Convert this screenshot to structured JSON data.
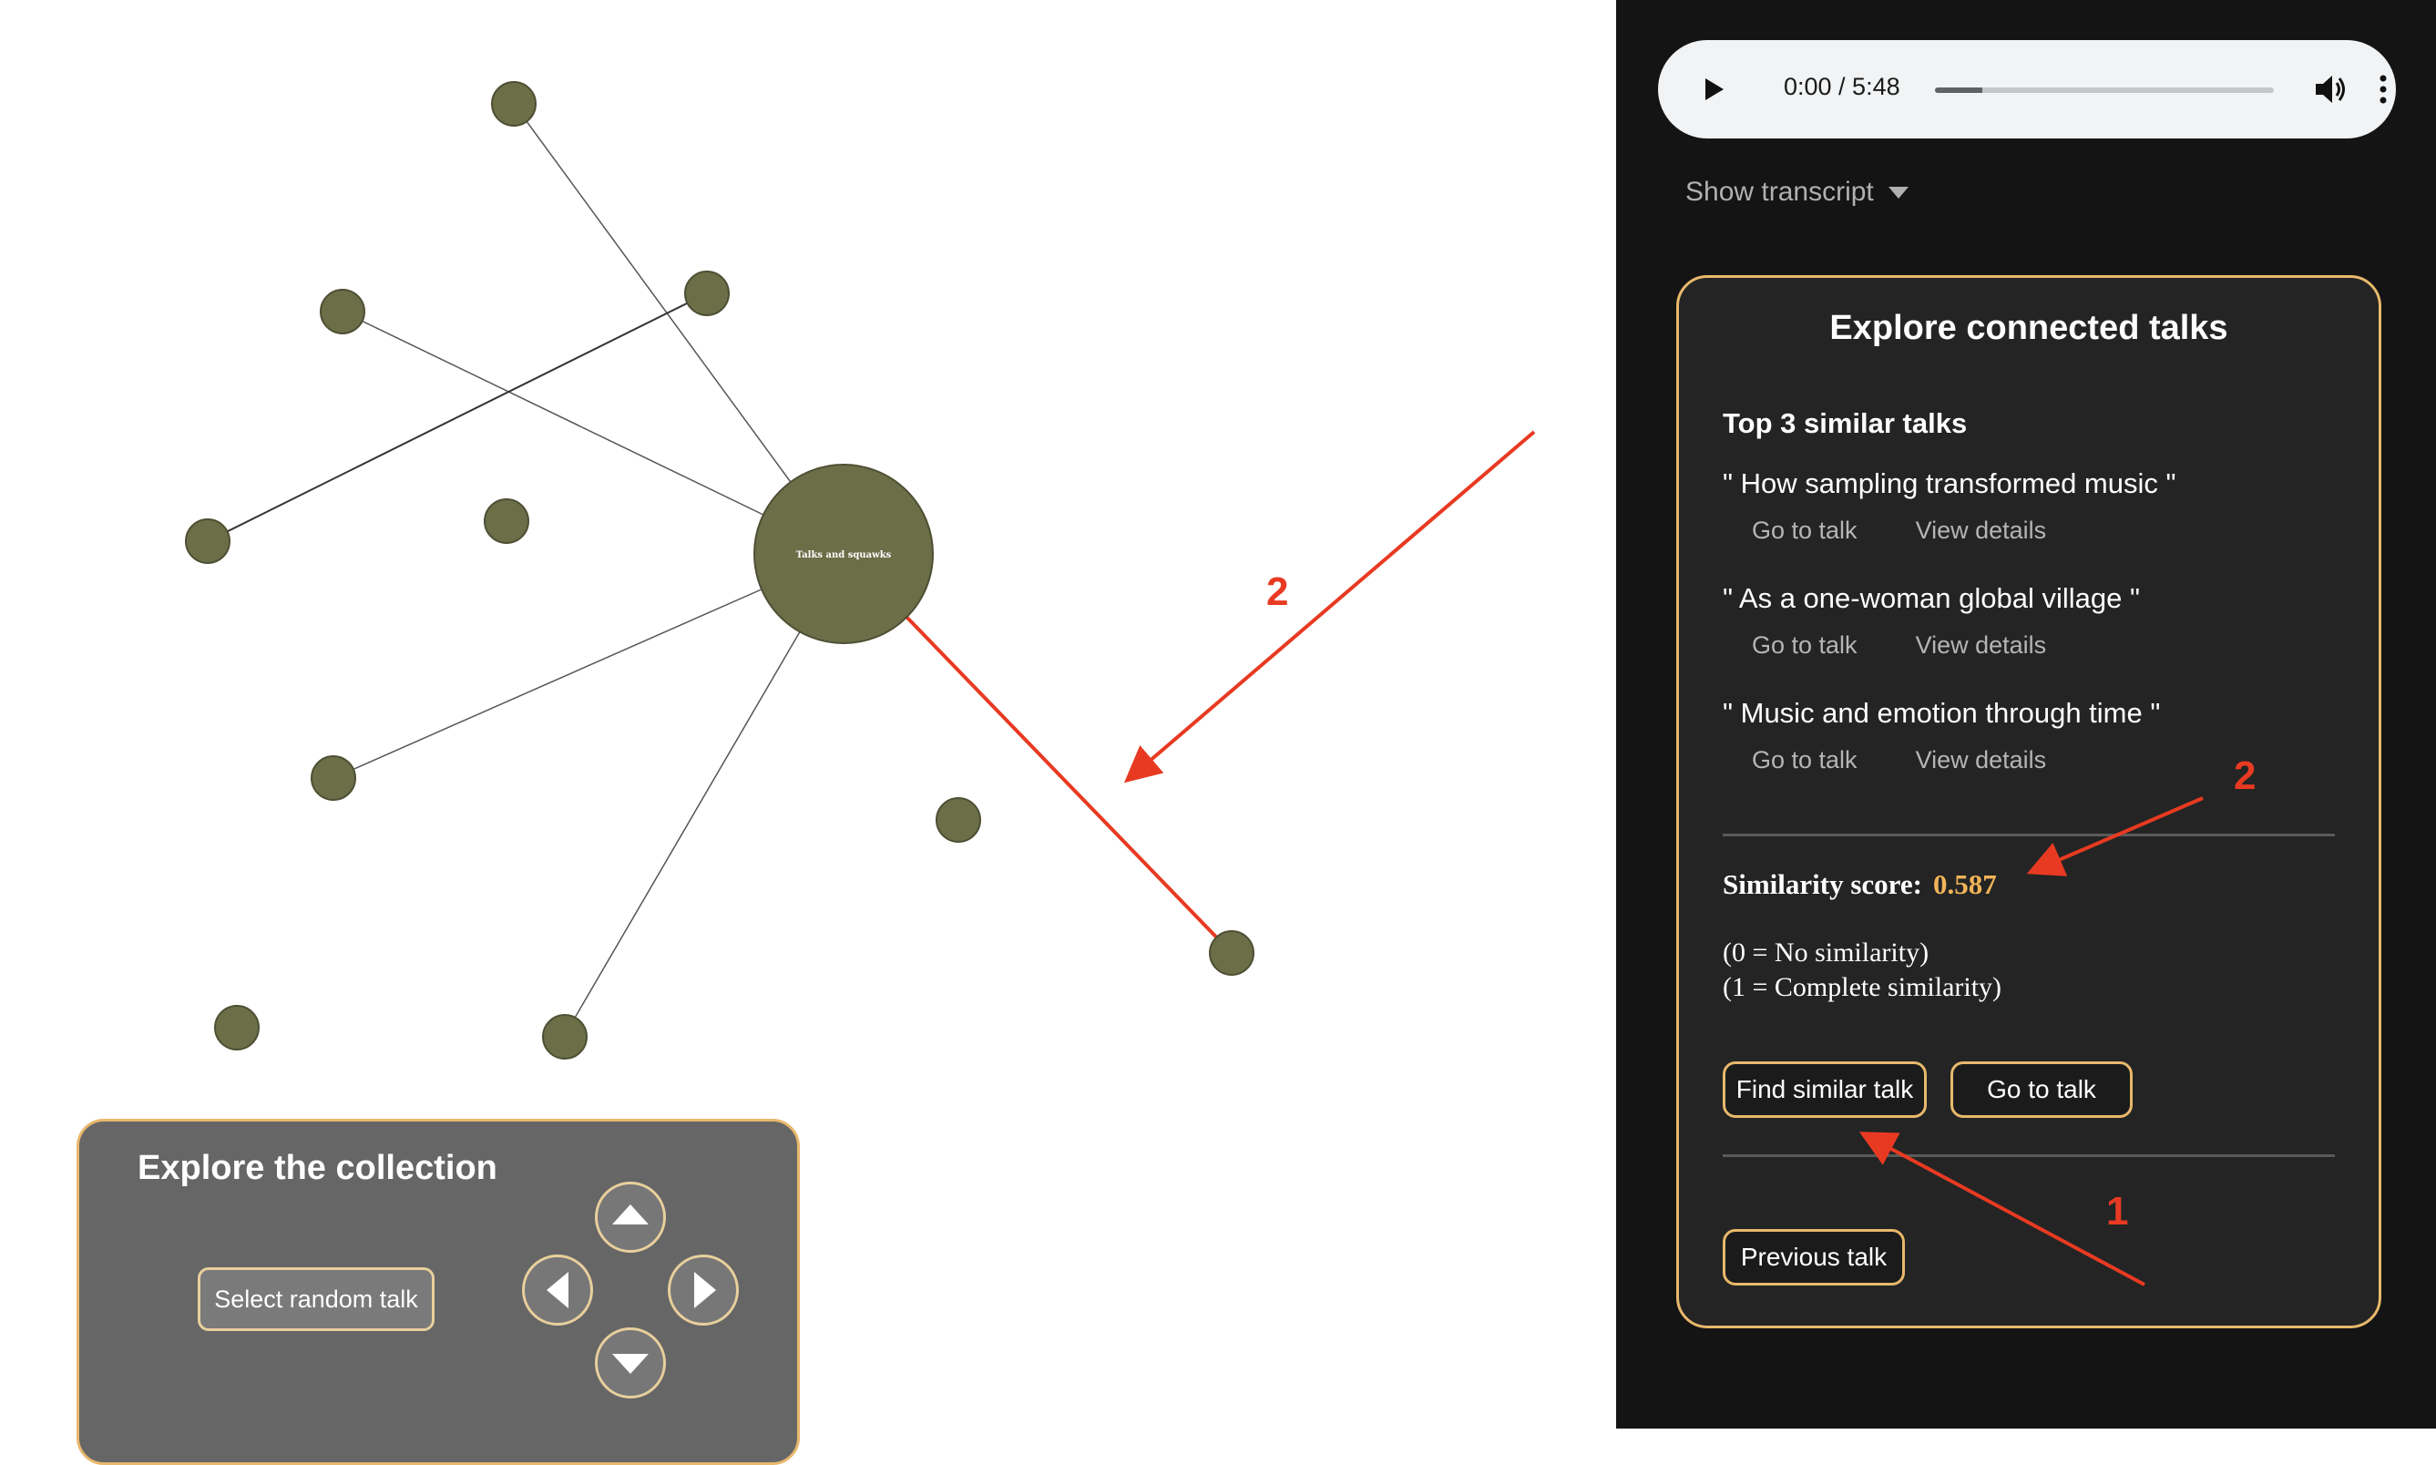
{
  "graph": {
    "center_label": "Talks and squawks",
    "node_color": "#6b6e47"
  },
  "player": {
    "time": "0:00 / 5:48",
    "progress": 0.14
  },
  "transcript": {
    "toggle_label": "Show transcript"
  },
  "connected": {
    "title": "Explore connected talks",
    "similar_heading": "Top 3 similar talks",
    "similar_talks": [
      {
        "title": "\" How sampling transformed music \"",
        "go_label": "Go to talk",
        "details_label": "View details"
      },
      {
        "title": "\" As a one-woman global village \"",
        "go_label": "Go to talk",
        "details_label": "View details"
      },
      {
        "title": "\" Music and emotion through time \"",
        "go_label": "Go to talk",
        "details_label": "View details"
      }
    ],
    "score_label": "Similarity score:",
    "score_value": "0.587",
    "legend_line1": "(0 = No similarity)",
    "legend_line2": "(1 = Complete similarity)",
    "find_similar_label": "Find similar talk",
    "go_to_talk_label": "Go to talk",
    "previous_label": "Previous talk"
  },
  "collection": {
    "title": "Explore the collection",
    "random_label": "Select random talk"
  },
  "annotations": {
    "label_1": "1",
    "label_2": "2",
    "color": "#e83a22"
  },
  "colors": {
    "accent": "#e8b86c",
    "score": "#f0b458",
    "sidebar_bg": "#141414"
  }
}
